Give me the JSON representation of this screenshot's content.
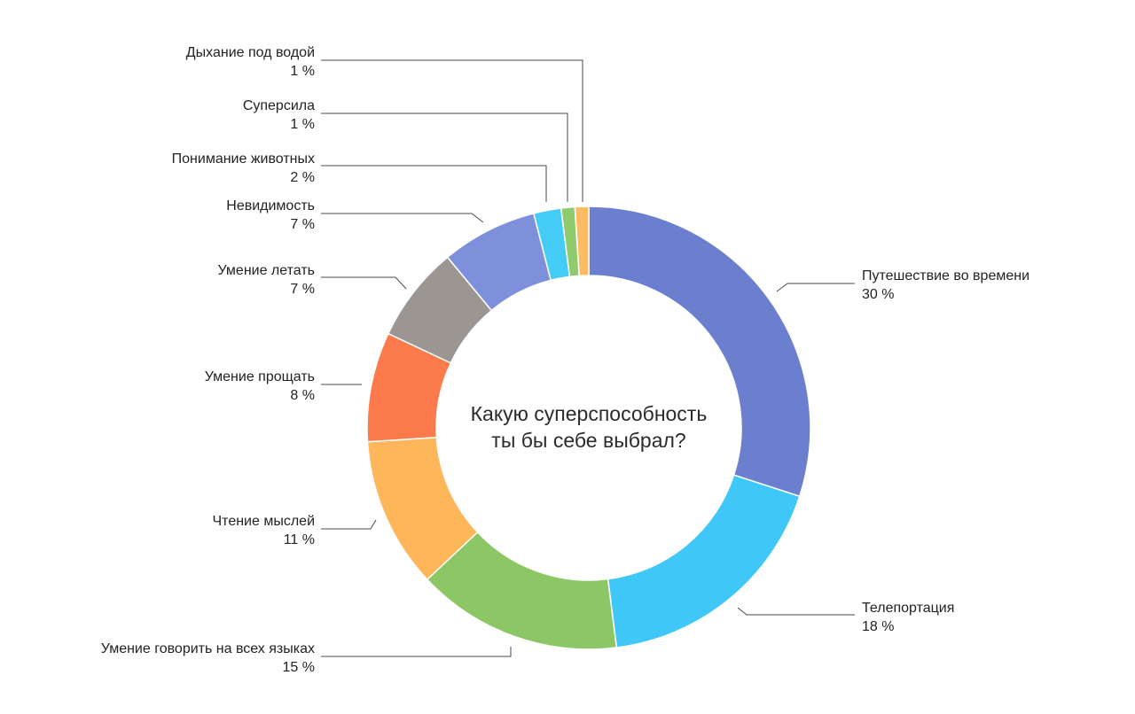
{
  "chart_data": {
    "type": "pie",
    "subtype": "donut",
    "title_lines": [
      "Какую суперспособность",
      "ты бы себе выбрал?"
    ],
    "slices": [
      {
        "name": "Путешествие во времени",
        "value": 30,
        "value_label": "30 %",
        "color": "#6C7FCF"
      },
      {
        "name": "Телепортация",
        "value": 18,
        "value_label": "18 %",
        "color": "#3FC8F7"
      },
      {
        "name": "Умение говорить на всех языках",
        "value": 15,
        "value_label": "15 %",
        "color": "#8CC665"
      },
      {
        "name": "Чтение мыслей",
        "value": 11,
        "value_label": "11 %",
        "color": "#FDB65A"
      },
      {
        "name": "Умение прощать",
        "value": 8,
        "value_label": "8 %",
        "color": "#FC7A4B"
      },
      {
        "name": "Умение летать",
        "value": 7,
        "value_label": "7 %",
        "color": "#9B9692"
      },
      {
        "name": "Невидимость",
        "value": 7,
        "value_label": "7 %",
        "color": "#7E8FDC"
      },
      {
        "name": "Понимание животных",
        "value": 2,
        "value_label": "2 %",
        "color": "#44CCF6"
      },
      {
        "name": "Суперсила",
        "value": 1,
        "value_label": "1 %",
        "color": "#8FCB6C"
      },
      {
        "name": "Дыхание под водой",
        "value": 1,
        "value_label": "1 %",
        "color": "#FDBC64"
      }
    ]
  }
}
